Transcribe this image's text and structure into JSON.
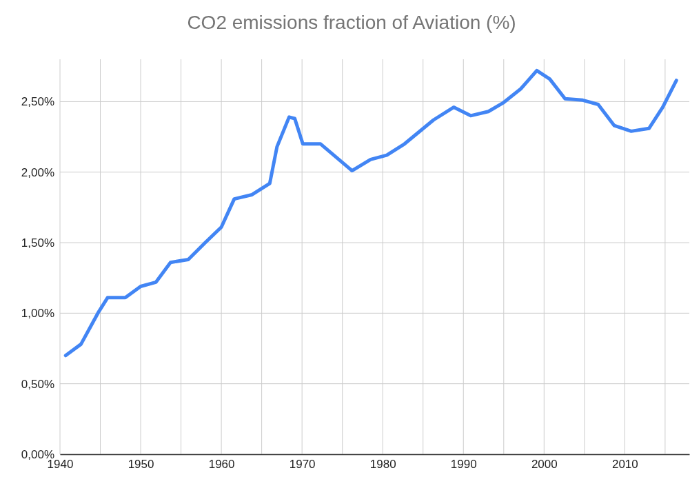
{
  "chart_data": {
    "type": "line",
    "title": "CO2 emissions fraction of Aviation (%)",
    "x": [
      1940.7,
      1942.6,
      1944.8,
      1945.9,
      1948.1,
      1950,
      1951.9,
      1953.7,
      1955.9,
      1958,
      1960,
      1961.6,
      1963.8,
      1966,
      1966.9,
      1968.4,
      1969.1,
      1970.1,
      1972.3,
      1976.2,
      1978.5,
      1980.5,
      1982.7,
      1986.3,
      1988.8,
      1990.9,
      1993.1,
      1994.9,
      1997.1,
      1999.1,
      2000.7,
      2002.6,
      2004.8,
      2006.7,
      2008.7,
      2010.8,
      2013,
      2014.7,
      2016.4
    ],
    "series": [
      {
        "color": "#4285f4",
        "values": [
          0.7,
          0.78,
          1.01,
          1.11,
          1.11,
          1.19,
          1.22,
          1.36,
          1.38,
          1.5,
          1.61,
          1.81,
          1.84,
          1.92,
          2.18,
          2.39,
          2.38,
          2.2,
          2.2,
          2.01,
          2.09,
          2.12,
          2.2,
          2.37,
          2.46,
          2.4,
          2.43,
          2.49,
          2.59,
          2.72,
          2.66,
          2.52,
          2.51,
          2.48,
          2.33,
          2.29,
          2.31,
          2.46,
          2.65
        ]
      }
    ],
    "xlim": [
      1940,
      2018
    ],
    "xticks": [
      1940,
      {
        "value": 1945,
        "label": null
      },
      1950,
      {
        "value": 1955,
        "label": null
      },
      1960,
      {
        "value": 1965,
        "label": null
      },
      1970,
      {
        "value": 1975,
        "label": null
      },
      1980,
      {
        "value": 1985,
        "label": null
      },
      1990,
      {
        "value": 1995,
        "label": null
      },
      2000,
      {
        "value": 2005,
        "label": null
      },
      2010,
      {
        "value": 2015,
        "label": null
      }
    ],
    "ylim": [
      0,
      2.8
    ],
    "yticks": [
      {
        "value": 0,
        "label": "0,00%"
      },
      {
        "value": 0.5,
        "label": "0,50%"
      },
      {
        "value": 1,
        "label": "1,00%"
      },
      {
        "value": 1.5,
        "label": "1,50%"
      },
      {
        "value": 2,
        "label": "2,00%"
      },
      {
        "value": 2.5,
        "label": "2,50%"
      }
    ],
    "grid": true,
    "marker": "none",
    "line_style": "solid"
  }
}
